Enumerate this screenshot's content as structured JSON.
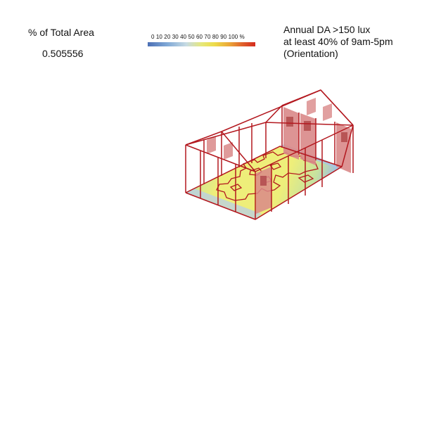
{
  "summary": {
    "label": "% of Total Area",
    "value": "0.505556"
  },
  "legend": {
    "ticks": "0 10 20 30 40 50 60 70 80 90 100 %",
    "range": [
      0,
      100
    ],
    "unit": "%",
    "colors": [
      "#4b6fb5",
      "#7fa8d6",
      "#c7dbe3",
      "#e6e87a",
      "#eddc4a",
      "#eba638",
      "#e0612b",
      "#d42a1e"
    ]
  },
  "metric": {
    "line1": "Annual DA >150 lux",
    "line2": "at least 40% of 9am-5pm",
    "line3": "(Orientation)"
  },
  "colors": {
    "wireframe": "#b3181f",
    "window_fill": "#d98888",
    "window_dark": "#b85555",
    "floor_high": "#eeee7a",
    "floor_mid": "#c6e2a0",
    "floor_low": "#8fb2dd"
  }
}
